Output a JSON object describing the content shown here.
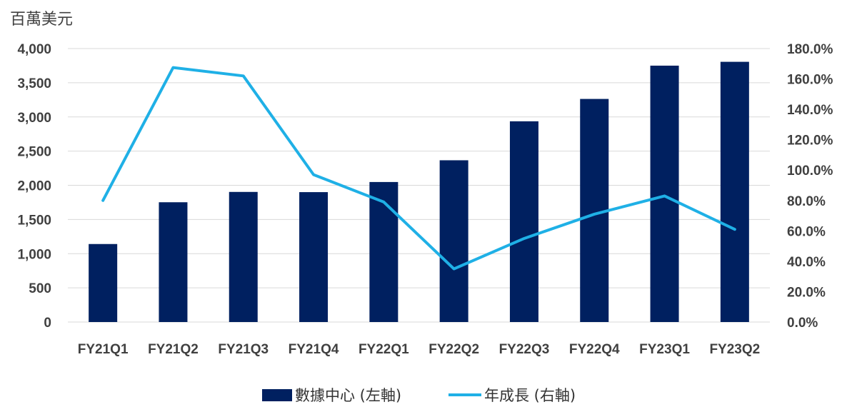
{
  "chart_data": {
    "type": "bar",
    "unit_label": "百萬美元",
    "categories": [
      "FY21Q1",
      "FY21Q2",
      "FY21Q3",
      "FY21Q4",
      "FY22Q1",
      "FY22Q2",
      "FY22Q3",
      "FY22Q4",
      "FY23Q1",
      "FY23Q2"
    ],
    "series": [
      {
        "name": "數據中心 (左軸)",
        "type": "bar",
        "axis": "left",
        "color": "#002060",
        "values": [
          1141,
          1752,
          1903,
          1900,
          2048,
          2366,
          2936,
          3263,
          3750,
          3806
        ]
      },
      {
        "name": "年成長 (右軸)",
        "type": "line",
        "axis": "right",
        "color": "#1FB0E6",
        "values": [
          80.0,
          167.5,
          162.0,
          97.0,
          79.0,
          35.0,
          55.0,
          71.0,
          83.0,
          61.0
        ]
      }
    ],
    "y_left": {
      "range": [
        0,
        4000
      ],
      "ticks": [
        0,
        500,
        1000,
        1500,
        2000,
        2500,
        3000,
        3500,
        4000
      ],
      "tick_labels": [
        "0",
        "500",
        "1,000",
        "1,500",
        "2,000",
        "2,500",
        "3,000",
        "3,500",
        "4,000"
      ]
    },
    "y_right": {
      "range": [
        0,
        180
      ],
      "ticks": [
        0,
        20,
        40,
        60,
        80,
        100,
        120,
        140,
        160,
        180
      ],
      "tick_labels": [
        "0.0%",
        "20.0%",
        "40.0%",
        "60.0%",
        "80.0%",
        "100.0%",
        "120.0%",
        "140.0%",
        "160.0%",
        "180.0%"
      ]
    },
    "grid": true,
    "legend_position": "bottom"
  }
}
